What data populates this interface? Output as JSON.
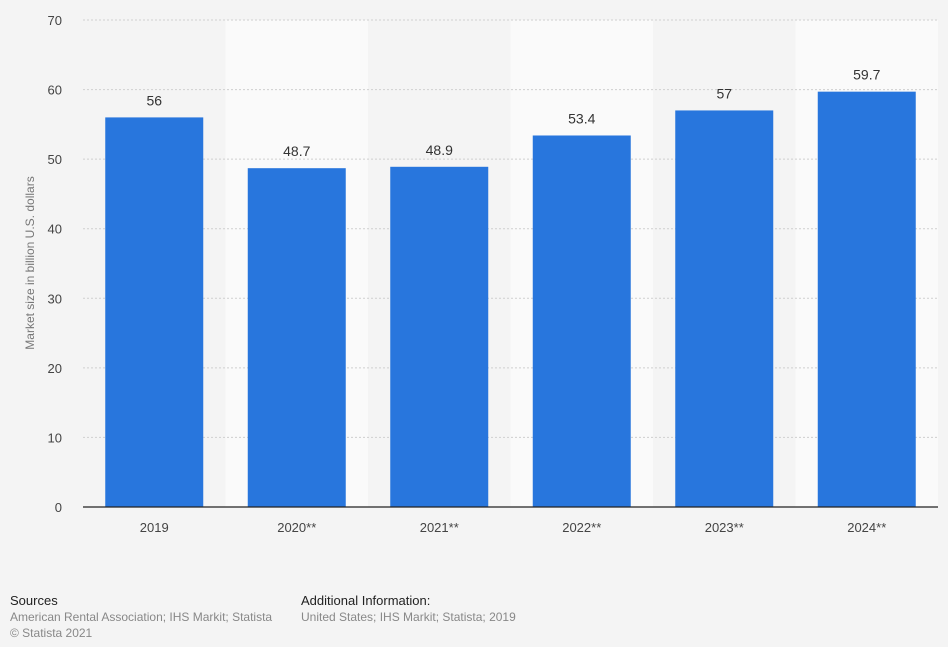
{
  "chart_data": {
    "type": "bar",
    "categories": [
      "2019",
      "2020**",
      "2021**",
      "2022**",
      "2023**",
      "2024**"
    ],
    "values": [
      56,
      48.7,
      48.9,
      53.4,
      57,
      59.7
    ],
    "value_labels": [
      "56",
      "48.7",
      "48.9",
      "53.4",
      "57",
      "59.7"
    ],
    "ylabel": "Market size in billion U.S. dollars",
    "xlabel": "",
    "ylim": [
      0,
      70
    ],
    "yticks": [
      0,
      10,
      20,
      30,
      40,
      50,
      60,
      70
    ],
    "grid": true,
    "colors": {
      "bar": "#2876dd",
      "band": "#fafafa",
      "background": "#f4f4f4"
    }
  },
  "footer": {
    "sources_heading": "Sources",
    "sources_lines": [
      "American Rental Association; IHS Markit; Statista",
      "© Statista 2021"
    ],
    "additional_heading": "Additional Information:",
    "additional_lines": [
      "United States; IHS Markit; Statista; 2019"
    ]
  }
}
